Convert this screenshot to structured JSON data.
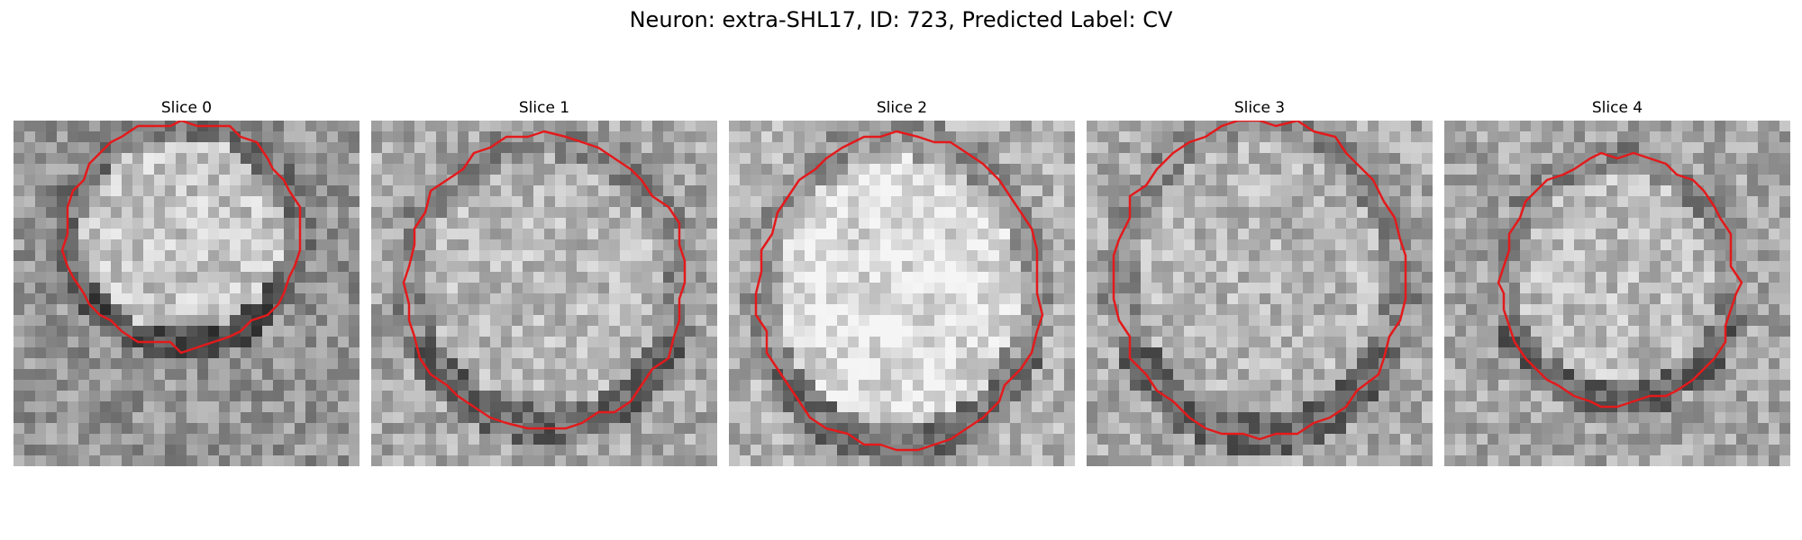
{
  "title": "Neuron: extra-SHL17, ID: 723, Predicted Label: CV",
  "contour_color": "#e31a1c",
  "panels": [
    {
      "label": "Slice 0",
      "image": "grayscale-patch",
      "background": "#8a8a8a",
      "interior": "#c4c4c4",
      "dark_band": "bottom"
    },
    {
      "label": "Slice 1",
      "image": "grayscale-patch",
      "background": "#9e9e9e",
      "interior": "#b8b8b8",
      "dark_band": "bottom"
    },
    {
      "label": "Slice 2",
      "image": "grayscale-patch",
      "background": "#a8a8a8",
      "interior": "#dcdcdc",
      "dark_band": "bottom"
    },
    {
      "label": "Slice 3",
      "image": "grayscale-patch",
      "background": "#a0a0a0",
      "interior": "#b6b6b6",
      "dark_band": "bottom"
    },
    {
      "label": "Slice 4",
      "image": "grayscale-patch",
      "background": "#9c9c9c",
      "interior": "#bcbcbc",
      "dark_band": "bottom"
    }
  ]
}
